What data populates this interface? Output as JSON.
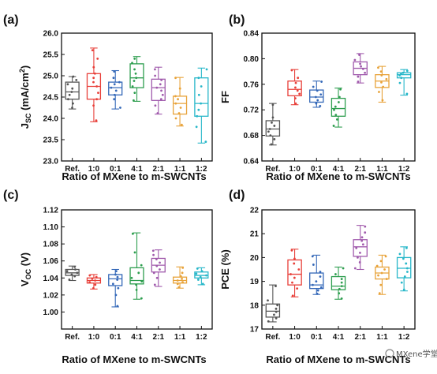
{
  "chart_data": [
    {
      "panel": "(a)",
      "type": "box",
      "xlabel": "Ratio of MXene to m-SWCNTs",
      "ylabel": "J_SC (mA/cm2)",
      "ylabel_parts": [
        "J",
        "SC",
        " (mA/cm",
        "2",
        ")"
      ],
      "ylim": [
        23.0,
        26.0
      ],
      "yticks": [
        "23.0",
        "23.5",
        "24.0",
        "24.5",
        "25.0",
        "25.5",
        "26.0"
      ],
      "categories": [
        "Ref.",
        "1:0",
        "0:1",
        "4:1",
        "2:1",
        "1:1",
        "1:2"
      ],
      "colors": [
        "#555555",
        "#e8403a",
        "#3468b8",
        "#2e9e4f",
        "#a05aac",
        "#e8a33a",
        "#27b7c9"
      ],
      "boxes": [
        {
          "q1": 24.45,
          "median": 24.62,
          "q3": 24.85,
          "min": 24.22,
          "max": 24.98,
          "points": [
            24.25,
            24.35,
            24.45,
            24.55,
            24.62,
            24.7,
            24.8,
            24.9,
            24.98
          ]
        },
        {
          "q1": 24.45,
          "median": 24.75,
          "q3": 25.05,
          "min": 23.92,
          "max": 25.65,
          "points": [
            23.95,
            24.3,
            24.45,
            24.6,
            24.75,
            24.85,
            24.95,
            25.05,
            25.2,
            25.4,
            25.6
          ]
        },
        {
          "q1": 24.55,
          "median": 24.72,
          "q3": 24.85,
          "min": 24.22,
          "max": 25.12,
          "points": [
            24.25,
            24.45,
            24.55,
            24.65,
            24.72,
            24.8,
            24.85,
            24.95,
            25.1
          ]
        },
        {
          "q1": 24.72,
          "median": 24.95,
          "q3": 25.28,
          "min": 24.4,
          "max": 25.45,
          "points": [
            24.42,
            24.6,
            24.75,
            24.88,
            24.95,
            25.05,
            25.15,
            25.3,
            25.4
          ]
        },
        {
          "q1": 24.42,
          "median": 24.72,
          "q3": 24.92,
          "min": 24.1,
          "max": 25.2,
          "points": [
            24.12,
            24.3,
            24.45,
            24.55,
            24.65,
            24.72,
            24.8,
            24.9,
            25.0,
            25.15
          ]
        },
        {
          "q1": 24.1,
          "median": 24.35,
          "q3": 24.52,
          "min": 23.82,
          "max": 24.96,
          "points": [
            23.85,
            24.0,
            24.12,
            24.25,
            24.35,
            24.45,
            24.52,
            24.7,
            24.95
          ]
        },
        {
          "q1": 24.05,
          "median": 24.35,
          "q3": 24.95,
          "min": 23.42,
          "max": 25.18,
          "points": [
            23.45,
            23.8,
            24.05,
            24.2,
            24.35,
            24.55,
            24.75,
            24.95,
            25.15
          ]
        }
      ]
    },
    {
      "panel": "(b)",
      "type": "box",
      "xlabel": "Ratio of MXene to m-SWCNTs",
      "ylabel": "FF",
      "ylim": [
        0.64,
        0.84
      ],
      "yticks": [
        "0.64",
        "0.68",
        "0.72",
        "0.76",
        "0.80",
        "0.84"
      ],
      "categories": [
        "Ref.",
        "1:0",
        "0:1",
        "4:1",
        "2:1",
        "1:1",
        "1:2"
      ],
      "colors": [
        "#555555",
        "#e8403a",
        "#3468b8",
        "#2e9e4f",
        "#a05aac",
        "#e8a33a",
        "#27b7c9"
      ],
      "boxes": [
        {
          "q1": 0.679,
          "median": 0.69,
          "q3": 0.703,
          "min": 0.665,
          "max": 0.73,
          "points": [
            0.666,
            0.674,
            0.68,
            0.686,
            0.69,
            0.695,
            0.7,
            0.708,
            0.728
          ]
        },
        {
          "q1": 0.742,
          "median": 0.752,
          "q3": 0.765,
          "min": 0.728,
          "max": 0.783,
          "points": [
            0.73,
            0.738,
            0.745,
            0.75,
            0.755,
            0.762,
            0.77,
            0.782
          ]
        },
        {
          "q1": 0.732,
          "median": 0.74,
          "q3": 0.751,
          "min": 0.724,
          "max": 0.765,
          "points": [
            0.726,
            0.73,
            0.735,
            0.74,
            0.744,
            0.75,
            0.756,
            0.764
          ]
        },
        {
          "q1": 0.71,
          "median": 0.722,
          "q3": 0.738,
          "min": 0.693,
          "max": 0.754,
          "points": [
            0.695,
            0.705,
            0.712,
            0.72,
            0.725,
            0.732,
            0.74,
            0.752
          ]
        },
        {
          "q1": 0.775,
          "median": 0.785,
          "q3": 0.795,
          "min": 0.762,
          "max": 0.808,
          "points": [
            0.764,
            0.772,
            0.778,
            0.784,
            0.788,
            0.792,
            0.798,
            0.806
          ]
        },
        {
          "q1": 0.755,
          "median": 0.765,
          "q3": 0.775,
          "min": 0.732,
          "max": 0.788,
          "points": [
            0.735,
            0.748,
            0.756,
            0.763,
            0.768,
            0.774,
            0.78,
            0.786
          ]
        },
        {
          "q1": 0.77,
          "median": 0.775,
          "q3": 0.778,
          "min": 0.743,
          "max": 0.783,
          "points": [
            0.745,
            0.762,
            0.77,
            0.774,
            0.776,
            0.778,
            0.781
          ]
        }
      ]
    },
    {
      "panel": "(c)",
      "type": "box",
      "xlabel": "Ratio of MXene to m-SWCNTs",
      "ylabel": "V_OC (V)",
      "ylabel_parts": [
        "V",
        "OC",
        " (V)"
      ],
      "ylim": [
        0.98,
        1.12
      ],
      "yticks": [
        "1.00",
        "1.02",
        "1.04",
        "1.06",
        "1.08",
        "1.10",
        "1.12"
      ],
      "categories": [
        "Ref.",
        "1:0",
        "0:1",
        "4:1",
        "2:1",
        "1:1",
        "1:2"
      ],
      "colors": [
        "#555555",
        "#e8403a",
        "#3468b8",
        "#2e9e4f",
        "#a05aac",
        "#e8a33a",
        "#27b7c9"
      ],
      "boxes": [
        {
          "q1": 1.043,
          "median": 1.046,
          "q3": 1.05,
          "min": 1.037,
          "max": 1.054,
          "points": [
            1.038,
            1.042,
            1.044,
            1.046,
            1.048,
            1.05,
            1.053
          ]
        },
        {
          "q1": 1.034,
          "median": 1.037,
          "q3": 1.04,
          "min": 1.027,
          "max": 1.044,
          "points": [
            1.028,
            1.032,
            1.035,
            1.037,
            1.039,
            1.041,
            1.043
          ]
        },
        {
          "q1": 1.031,
          "median": 1.039,
          "q3": 1.044,
          "min": 1.006,
          "max": 1.05,
          "points": [
            1.007,
            1.02,
            1.028,
            1.033,
            1.038,
            1.041,
            1.044,
            1.048
          ]
        },
        {
          "q1": 1.033,
          "median": 1.037,
          "q3": 1.052,
          "min": 1.015,
          "max": 1.093,
          "points": [
            1.016,
            1.026,
            1.032,
            1.036,
            1.04,
            1.046,
            1.055,
            1.07,
            1.092
          ]
        },
        {
          "q1": 1.047,
          "median": 1.055,
          "q3": 1.063,
          "min": 1.03,
          "max": 1.073,
          "points": [
            1.032,
            1.04,
            1.046,
            1.05,
            1.054,
            1.058,
            1.062,
            1.067,
            1.072
          ]
        },
        {
          "q1": 1.034,
          "median": 1.037,
          "q3": 1.041,
          "min": 1.028,
          "max": 1.053,
          "points": [
            1.029,
            1.033,
            1.035,
            1.037,
            1.039,
            1.042,
            1.046,
            1.052
          ]
        },
        {
          "q1": 1.04,
          "median": 1.043,
          "q3": 1.047,
          "min": 1.032,
          "max": 1.052,
          "points": [
            1.033,
            1.038,
            1.041,
            1.043,
            1.045,
            1.048,
            1.051
          ]
        }
      ]
    },
    {
      "panel": "(d)",
      "type": "box",
      "xlabel": "Ratio of MXene to m-SWCNTs",
      "ylabel": "PCE (%)",
      "ylim": [
        17,
        22
      ],
      "yticks": [
        "17",
        "18",
        "19",
        "20",
        "21",
        "22"
      ],
      "categories": [
        "Ref.",
        "1:0",
        "0:1",
        "4:1",
        "2:1",
        "1:1",
        "1:2"
      ],
      "colors": [
        "#555555",
        "#e8403a",
        "#3468b8",
        "#2e9e4f",
        "#a05aac",
        "#e8a33a",
        "#27b7c9"
      ],
      "boxes": [
        {
          "q1": 17.5,
          "median": 17.75,
          "q3": 18.05,
          "min": 17.3,
          "max": 18.85,
          "points": [
            17.32,
            17.45,
            17.6,
            17.72,
            17.85,
            18.0,
            18.2,
            18.8
          ]
        },
        {
          "q1": 18.85,
          "median": 19.3,
          "q3": 19.9,
          "min": 18.35,
          "max": 20.35,
          "points": [
            18.4,
            18.7,
            18.95,
            19.15,
            19.3,
            19.5,
            19.75,
            19.95,
            20.3
          ]
        },
        {
          "q1": 18.7,
          "median": 18.85,
          "q3": 19.35,
          "min": 18.45,
          "max": 20.1,
          "points": [
            18.48,
            18.62,
            18.75,
            18.85,
            19.0,
            19.2,
            19.4,
            19.7,
            20.05
          ]
        },
        {
          "q1": 18.65,
          "median": 18.8,
          "q3": 19.2,
          "min": 18.25,
          "max": 19.6,
          "points": [
            18.28,
            18.5,
            18.68,
            18.8,
            18.95,
            19.1,
            19.3,
            19.55
          ]
        },
        {
          "q1": 20.05,
          "median": 20.45,
          "q3": 20.75,
          "min": 19.5,
          "max": 21.35,
          "points": [
            19.55,
            19.8,
            20.0,
            20.2,
            20.4,
            20.55,
            20.7,
            20.85,
            21.05,
            21.3
          ]
        },
        {
          "q1": 19.1,
          "median": 19.35,
          "q3": 19.6,
          "min": 18.45,
          "max": 20.1,
          "points": [
            18.5,
            18.85,
            19.1,
            19.25,
            19.35,
            19.5,
            19.65,
            19.85,
            20.05
          ]
        },
        {
          "q1": 19.15,
          "median": 19.55,
          "q3": 20.0,
          "min": 18.6,
          "max": 20.45,
          "points": [
            18.65,
            18.95,
            19.2,
            19.4,
            19.55,
            19.75,
            19.95,
            20.15,
            20.4
          ]
        }
      ]
    }
  ],
  "watermark": {
    "text": "MXene学堂"
  }
}
